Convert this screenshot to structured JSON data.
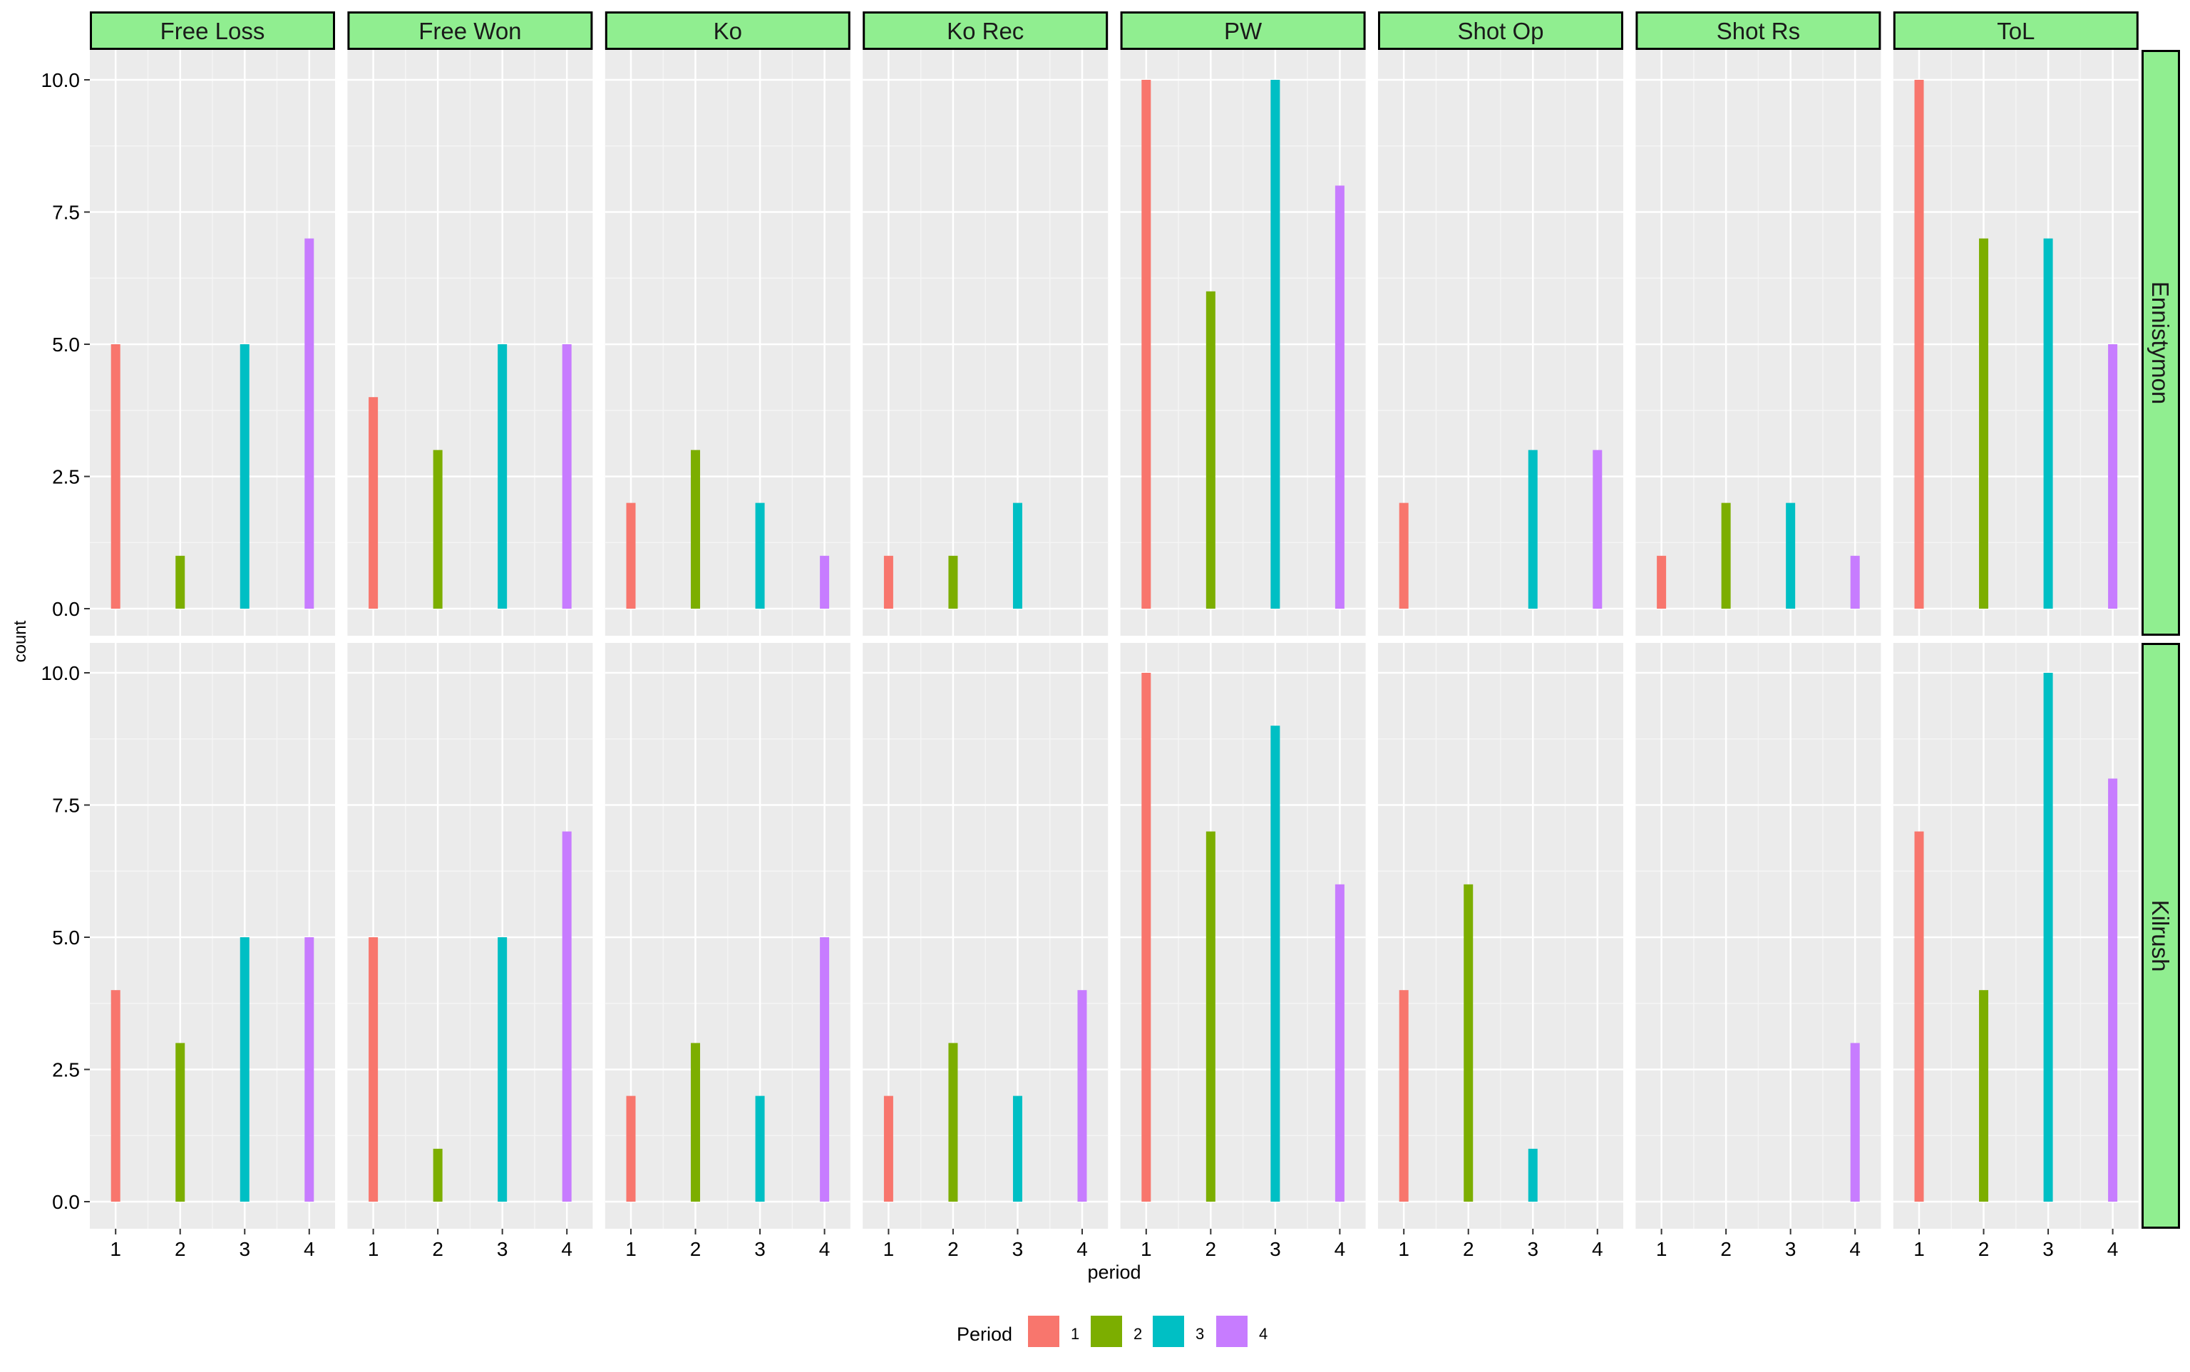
{
  "chart_data": {
    "type": "bar",
    "xlabel": "period",
    "ylabel": "count",
    "x": [
      1,
      2,
      3,
      4
    ],
    "ylim": [
      0,
      10
    ],
    "yticks": [
      "0.0",
      "2.5",
      "5.0",
      "7.5",
      "10.0"
    ],
    "grid": true,
    "legend": {
      "title": "Period",
      "placement": "bottom",
      "entries": [
        {
          "label": "1",
          "color": "#F8766D"
        },
        {
          "label": "2",
          "color": "#7CAE00"
        },
        {
          "label": "3",
          "color": "#00BFC4"
        },
        {
          "label": "4",
          "color": "#C77CFF"
        }
      ]
    },
    "columns": [
      "Free Loss",
      "Free Won",
      "Ko",
      "Ko Rec",
      "PW",
      "Shot Op",
      "Shot Rs",
      "ToL"
    ],
    "rows": [
      "Ennistymon",
      "Kilrush"
    ],
    "panels": [
      [
        [
          5,
          1,
          5,
          7
        ],
        [
          4,
          3,
          5,
          5
        ],
        [
          2,
          3,
          2,
          1
        ],
        [
          1,
          1,
          2,
          0
        ],
        [
          10,
          6,
          10,
          8
        ],
        [
          2,
          0,
          3,
          3
        ],
        [
          1,
          2,
          2,
          1
        ],
        [
          10,
          7,
          7,
          5
        ]
      ],
      [
        [
          4,
          3,
          5,
          5
        ],
        [
          5,
          1,
          5,
          7
        ],
        [
          2,
          3,
          2,
          5
        ],
        [
          2,
          3,
          2,
          4
        ],
        [
          10,
          7,
          9,
          6
        ],
        [
          4,
          6,
          1,
          0
        ],
        [
          0,
          0,
          0,
          3
        ],
        [
          7,
          4,
          10,
          8
        ]
      ]
    ]
  }
}
